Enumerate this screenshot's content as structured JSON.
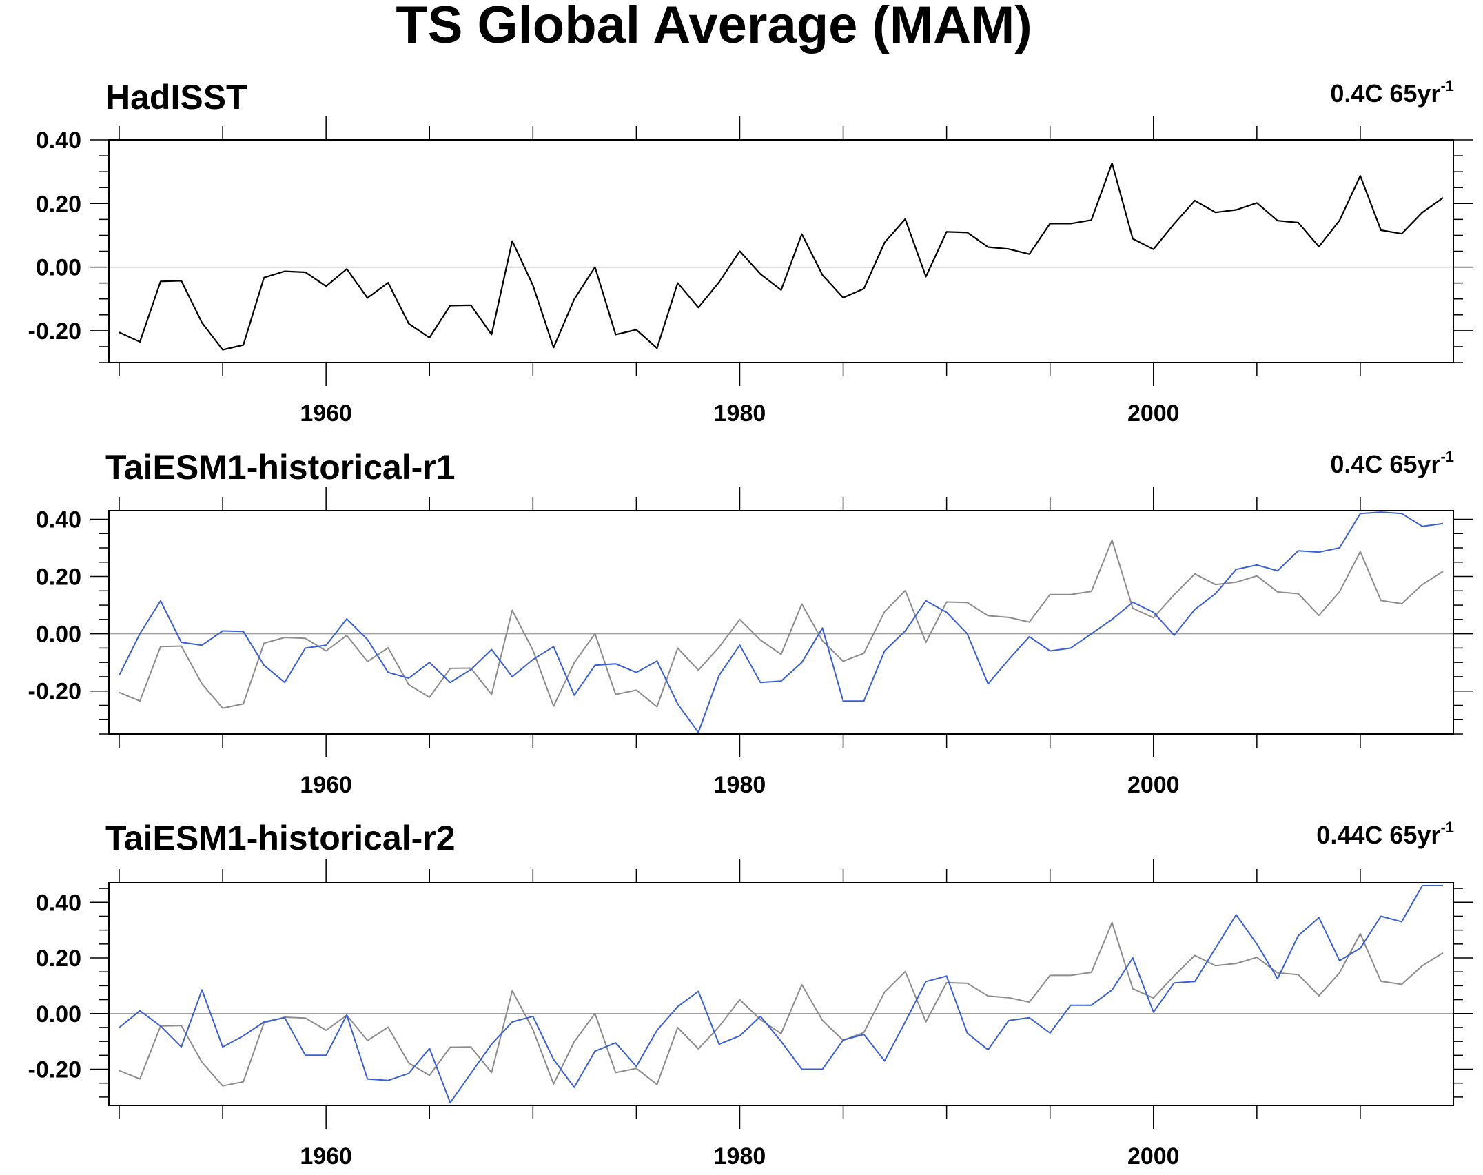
{
  "title": "TS Global Average (MAM)",
  "colors": {
    "observation": "#000000",
    "observation_overlay": "#8c8c8c",
    "model": "#3a5fd6",
    "zero_line": "#a0a0a0",
    "axis": "#000000"
  },
  "chart_data": [
    {
      "type": "line",
      "title": "HadISST",
      "trend_label": "0.4C 65yr",
      "trend_unit_exponent": "-1",
      "xlabel": "",
      "ylabel": "",
      "xlim": [
        1949.5,
        2014.5
      ],
      "ylim": [
        -0.3,
        0.4
      ],
      "x_ticks": [
        "1960",
        "1980",
        "2000"
      ],
      "y_ticks": [
        "0.40",
        "0.20",
        "0.00",
        "-0.20"
      ],
      "grid": false,
      "x": [
        1950,
        1951,
        1952,
        1953,
        1954,
        1955,
        1956,
        1957,
        1958,
        1959,
        1960,
        1961,
        1962,
        1963,
        1964,
        1965,
        1966,
        1967,
        1968,
        1969,
        1970,
        1971,
        1972,
        1973,
        1974,
        1975,
        1976,
        1977,
        1978,
        1979,
        1980,
        1981,
        1982,
        1983,
        1984,
        1985,
        1986,
        1987,
        1988,
        1989,
        1990,
        1991,
        1992,
        1993,
        1994,
        1995,
        1996,
        1997,
        1998,
        1999,
        2000,
        2001,
        2002,
        2003,
        2004,
        2005,
        2006,
        2007,
        2008,
        2009,
        2010,
        2011,
        2012,
        2013,
        2014
      ],
      "series": [
        {
          "name": "HadISST",
          "role": "observation",
          "values": [
            -0.205,
            -0.235,
            -0.045,
            -0.043,
            -0.175,
            -0.26,
            -0.245,
            -0.033,
            -0.013,
            -0.016,
            -0.06,
            -0.006,
            -0.097,
            -0.049,
            -0.178,
            -0.222,
            -0.121,
            -0.12,
            -0.212,
            0.082,
            -0.057,
            -0.253,
            -0.101,
            0.0,
            -0.212,
            -0.197,
            -0.255,
            -0.05,
            -0.127,
            -0.047,
            0.05,
            -0.022,
            -0.072,
            0.104,
            -0.025,
            -0.096,
            -0.068,
            0.077,
            0.151,
            -0.03,
            0.111,
            0.109,
            0.063,
            0.057,
            0.041,
            0.137,
            0.137,
            0.148,
            0.327,
            0.089,
            0.056,
            0.136,
            0.209,
            0.172,
            0.18,
            0.202,
            0.146,
            0.14,
            0.064,
            0.147,
            0.287,
            0.116,
            0.105,
            0.172,
            0.218
          ]
        }
      ]
    },
    {
      "type": "line",
      "title": "TaiESM1-historical-r1",
      "trend_label": "0.4C 65yr",
      "trend_unit_exponent": "-1",
      "xlabel": "",
      "ylabel": "",
      "xlim": [
        1949.5,
        2014.5
      ],
      "ylim": [
        -0.35,
        0.43
      ],
      "x_ticks": [
        "1960",
        "1980",
        "2000"
      ],
      "y_ticks": [
        "0.40",
        "0.20",
        "0.00",
        "-0.20"
      ],
      "grid": false,
      "x": [
        1950,
        1951,
        1952,
        1953,
        1954,
        1955,
        1956,
        1957,
        1958,
        1959,
        1960,
        1961,
        1962,
        1963,
        1964,
        1965,
        1966,
        1967,
        1968,
        1969,
        1970,
        1971,
        1972,
        1973,
        1974,
        1975,
        1976,
        1977,
        1978,
        1979,
        1980,
        1981,
        1982,
        1983,
        1984,
        1985,
        1986,
        1987,
        1988,
        1989,
        1990,
        1991,
        1992,
        1993,
        1994,
        1995,
        1996,
        1997,
        1998,
        1999,
        2000,
        2001,
        2002,
        2003,
        2004,
        2005,
        2006,
        2007,
        2008,
        2009,
        2010,
        2011,
        2012,
        2013,
        2014
      ],
      "series": [
        {
          "name": "HadISST",
          "role": "observation_overlay",
          "values": [
            -0.205,
            -0.235,
            -0.045,
            -0.043,
            -0.175,
            -0.26,
            -0.245,
            -0.033,
            -0.013,
            -0.016,
            -0.06,
            -0.006,
            -0.097,
            -0.049,
            -0.178,
            -0.222,
            -0.121,
            -0.12,
            -0.212,
            0.082,
            -0.057,
            -0.253,
            -0.101,
            0.0,
            -0.212,
            -0.197,
            -0.255,
            -0.05,
            -0.127,
            -0.047,
            0.05,
            -0.022,
            -0.072,
            0.104,
            -0.025,
            -0.096,
            -0.068,
            0.077,
            0.151,
            -0.03,
            0.111,
            0.109,
            0.063,
            0.057,
            0.041,
            0.137,
            0.137,
            0.148,
            0.327,
            0.089,
            0.056,
            0.136,
            0.209,
            0.172,
            0.18,
            0.202,
            0.146,
            0.14,
            0.064,
            0.147,
            0.287,
            0.116,
            0.105,
            0.172,
            0.218
          ]
        },
        {
          "name": "TaiESM1-historical-r1",
          "role": "model",
          "values": [
            -0.145,
            0.0,
            0.115,
            -0.03,
            -0.04,
            0.01,
            0.008,
            -0.11,
            -0.17,
            -0.05,
            -0.04,
            0.052,
            -0.02,
            -0.135,
            -0.155,
            -0.1,
            -0.17,
            -0.125,
            -0.055,
            -0.15,
            -0.09,
            -0.045,
            -0.215,
            -0.11,
            -0.105,
            -0.135,
            -0.095,
            -0.245,
            -0.345,
            -0.145,
            -0.04,
            -0.17,
            -0.165,
            -0.1,
            0.02,
            -0.235,
            -0.235,
            -0.06,
            0.01,
            0.115,
            0.075,
            0.0,
            -0.175,
            -0.09,
            -0.01,
            -0.06,
            -0.05,
            0.0,
            0.05,
            0.11,
            0.075,
            -0.005,
            0.085,
            0.14,
            0.225,
            0.24,
            0.22,
            0.29,
            0.285,
            0.3,
            0.42,
            0.425,
            0.42,
            0.375,
            0.385
          ]
        }
      ]
    },
    {
      "type": "line",
      "title": "TaiESM1-historical-r2",
      "trend_label": "0.44C 65yr",
      "trend_unit_exponent": "-1",
      "xlabel": "",
      "ylabel": "",
      "xlim": [
        1949.5,
        2014.5
      ],
      "ylim": [
        -0.33,
        0.47
      ],
      "x_ticks": [
        "1960",
        "1980",
        "2000"
      ],
      "y_ticks": [
        "0.40",
        "0.20",
        "0.00",
        "-0.20"
      ],
      "grid": false,
      "x": [
        1950,
        1951,
        1952,
        1953,
        1954,
        1955,
        1956,
        1957,
        1958,
        1959,
        1960,
        1961,
        1962,
        1963,
        1964,
        1965,
        1966,
        1967,
        1968,
        1969,
        1970,
        1971,
        1972,
        1973,
        1974,
        1975,
        1976,
        1977,
        1978,
        1979,
        1980,
        1981,
        1982,
        1983,
        1984,
        1985,
        1986,
        1987,
        1988,
        1989,
        1990,
        1991,
        1992,
        1993,
        1994,
        1995,
        1996,
        1997,
        1998,
        1999,
        2000,
        2001,
        2002,
        2003,
        2004,
        2005,
        2006,
        2007,
        2008,
        2009,
        2010,
        2011,
        2012,
        2013,
        2014
      ],
      "series": [
        {
          "name": "HadISST",
          "role": "observation_overlay",
          "values": [
            -0.205,
            -0.235,
            -0.045,
            -0.043,
            -0.175,
            -0.26,
            -0.245,
            -0.033,
            -0.013,
            -0.016,
            -0.06,
            -0.006,
            -0.097,
            -0.049,
            -0.178,
            -0.222,
            -0.121,
            -0.12,
            -0.212,
            0.082,
            -0.057,
            -0.253,
            -0.101,
            0.0,
            -0.212,
            -0.197,
            -0.255,
            -0.05,
            -0.127,
            -0.047,
            0.05,
            -0.022,
            -0.072,
            0.104,
            -0.025,
            -0.096,
            -0.068,
            0.077,
            0.151,
            -0.03,
            0.111,
            0.109,
            0.063,
            0.057,
            0.041,
            0.137,
            0.137,
            0.148,
            0.327,
            0.089,
            0.056,
            0.136,
            0.209,
            0.172,
            0.18,
            0.202,
            0.146,
            0.14,
            0.064,
            0.147,
            0.287,
            0.116,
            0.105,
            0.172,
            0.218
          ]
        },
        {
          "name": "TaiESM1-historical-r2",
          "role": "model",
          "values": [
            -0.05,
            0.01,
            -0.045,
            -0.12,
            0.085,
            -0.12,
            -0.08,
            -0.03,
            -0.015,
            -0.15,
            -0.15,
            -0.005,
            -0.235,
            -0.24,
            -0.215,
            -0.125,
            -0.32,
            -0.215,
            -0.11,
            -0.03,
            -0.01,
            -0.165,
            -0.265,
            -0.135,
            -0.105,
            -0.19,
            -0.06,
            0.025,
            0.08,
            -0.11,
            -0.08,
            -0.01,
            -0.1,
            -0.2,
            -0.2,
            -0.095,
            -0.075,
            -0.17,
            -0.03,
            0.115,
            0.135,
            -0.07,
            -0.13,
            -0.025,
            -0.015,
            -0.07,
            0.03,
            0.03,
            0.085,
            0.2,
            0.005,
            0.11,
            0.115,
            0.235,
            0.355,
            0.25,
            0.125,
            0.28,
            0.345,
            0.19,
            0.235,
            0.35,
            0.33,
            0.46,
            0.46
          ]
        }
      ]
    }
  ]
}
